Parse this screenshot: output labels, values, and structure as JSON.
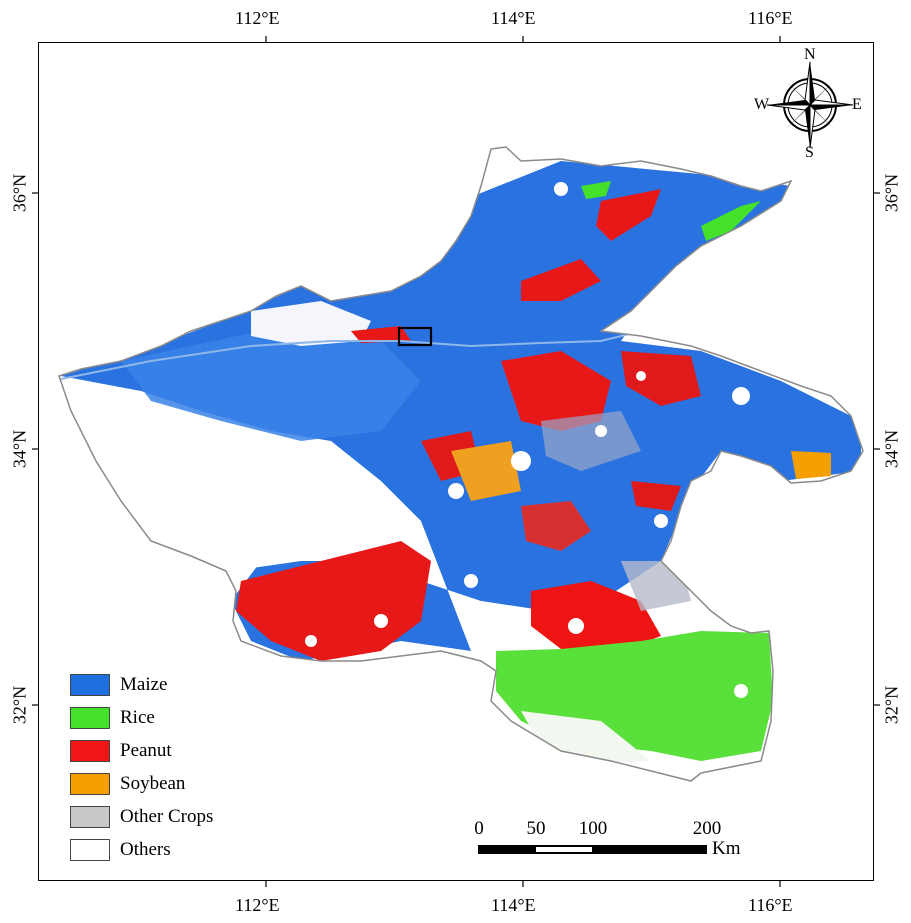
{
  "map": {
    "lon_ticks": [
      "112°E",
      "114°E",
      "116°E"
    ],
    "lat_ticks": [
      "36°N",
      "34°N",
      "32°N"
    ]
  },
  "compass": {
    "n": "N",
    "s": "S",
    "e": "E",
    "w": "W"
  },
  "legend": [
    {
      "label": "Maize",
      "color": "#1f6fe0"
    },
    {
      "label": "Rice",
      "color": "#44e02a"
    },
    {
      "label": "Peanut",
      "color": "#f01616"
    },
    {
      "label": "Soybean",
      "color": "#f5a000"
    },
    {
      "label": "Other Crops",
      "color": "#c8c8c8"
    },
    {
      "label": "Others",
      "color": "#ffffff"
    }
  ],
  "scale": {
    "labels": [
      "0",
      "50",
      "100",
      "200"
    ],
    "unit": "Km"
  }
}
